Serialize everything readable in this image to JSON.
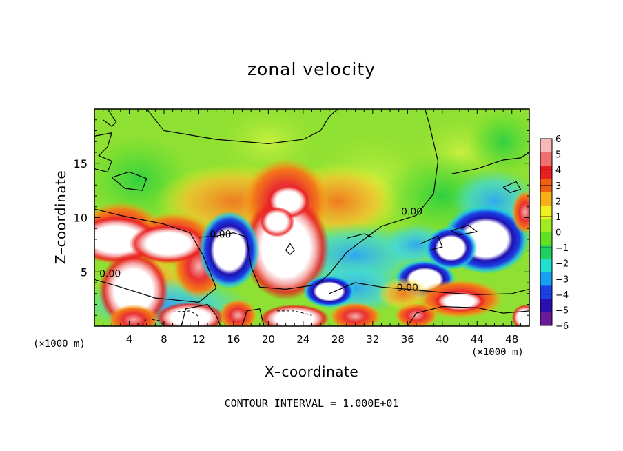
{
  "chart_data": {
    "type": "heatmap",
    "title": "zonal velocity",
    "xlabel": "X–coordinate",
    "ylabel": "Z–coordinate",
    "x_unit_label_left": "(×1000 m)",
    "x_unit_label_right": "(×1000 m)",
    "footnote": "CONTOUR INTERVAL = 1.000E+01",
    "xlim": [
      0,
      50
    ],
    "ylim": [
      0,
      20
    ],
    "x_ticks": [
      4,
      8,
      12,
      16,
      20,
      24,
      28,
      32,
      36,
      40,
      44,
      48
    ],
    "x_tick_labels": [
      "4",
      "8",
      "12",
      "16",
      "20",
      "24",
      "28",
      "32",
      "36",
      "40",
      "44",
      "48"
    ],
    "y_ticks": [
      5,
      10,
      15
    ],
    "y_tick_labels": [
      "5",
      "10",
      "15"
    ],
    "colorbar": {
      "min": -6,
      "max": 6,
      "ticks": [
        6,
        5,
        4,
        3,
        2,
        1,
        0,
        -1,
        -2,
        -3,
        -4,
        -5,
        -6
      ],
      "tick_labels": [
        "6",
        "5",
        "4",
        "3",
        "2",
        "1",
        "0",
        "−1",
        "−2",
        "−3",
        "−4",
        "−5",
        "−6"
      ],
      "colors": [
        "#6a1a9a",
        "#2a10b0",
        "#1a40e6",
        "#18a0f0",
        "#20e0d0",
        "#20d060",
        "#60e020",
        "#a0ec20",
        "#f0f020",
        "#f8b018",
        "#f06010",
        "#e82020",
        "#f07070",
        "#f8b8b8"
      ]
    },
    "contour_labels": [
      "0.00",
      "0.00",
      "0.00",
      "0.00"
    ],
    "features": [
      {
        "x": 22,
        "z": 7,
        "value": 8,
        "note": "strong positive core"
      },
      {
        "x": 22,
        "z": 11.5,
        "value": 5
      },
      {
        "x": 4.5,
        "z": 2.5,
        "value": 7
      },
      {
        "x": 2,
        "z": 8,
        "value": 7
      },
      {
        "x": 15.5,
        "z": 7,
        "value": -8
      },
      {
        "x": 45,
        "z": 7.5,
        "value": -8
      },
      {
        "x": 38,
        "z": 4,
        "value": -7
      },
      {
        "x": 32,
        "z": 14,
        "value": 1
      },
      {
        "x": 15,
        "z": 1,
        "value": 6
      },
      {
        "x": 30,
        "z": 1,
        "value": 6
      }
    ]
  }
}
